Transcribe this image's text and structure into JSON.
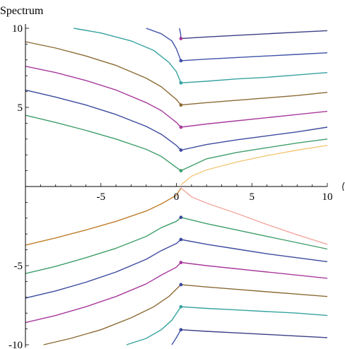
{
  "chart_data": {
    "type": "line",
    "title": "",
    "ylabel": "Spectrum",
    "xlabel": "",
    "xlim": [
      -10,
      10
    ],
    "ylim": [
      -10,
      10
    ],
    "x_ticks": [
      {
        "value": -5,
        "label": "-5"
      },
      {
        "value": 0,
        "label": "0"
      },
      {
        "value": 5,
        "label": "5"
      },
      {
        "value": 10,
        "label": "10"
      }
    ],
    "y_ticks": [
      {
        "value": 10,
        "label": "10"
      },
      {
        "value": 5,
        "label": "5"
      },
      {
        "value": -5,
        "label": "-5"
      },
      {
        "value": -10,
        "label": "-10"
      }
    ],
    "grid": false,
    "series": [
      {
        "color": "#f4c87a",
        "points": [
          [
            0.3,
            0.1
          ],
          [
            1,
            0.65
          ],
          [
            2,
            1.05
          ],
          [
            4,
            1.55
          ],
          [
            6,
            1.95
          ],
          [
            8,
            2.3
          ],
          [
            10,
            2.6
          ]
        ]
      },
      {
        "color": "#f4a8a0",
        "points": [
          [
            0.3,
            -0.1
          ],
          [
            1,
            -0.65
          ],
          [
            2,
            -1.05
          ],
          [
            4,
            -1.7
          ],
          [
            6,
            -2.4
          ],
          [
            8,
            -3.05
          ],
          [
            10,
            -3.65
          ]
        ]
      },
      {
        "color": "#c07e2a",
        "points": [
          [
            -10,
            -3.7
          ],
          [
            -8,
            -3.25
          ],
          [
            -6,
            -2.75
          ],
          [
            -4,
            -2.2
          ],
          [
            -2,
            -1.55
          ],
          [
            -1,
            -1.1
          ],
          [
            0,
            -0.55
          ],
          [
            0.3,
            -0.1
          ]
        ]
      },
      {
        "color": "#3f9e6a",
        "points": [
          [
            -10,
            4.5
          ],
          [
            -8,
            4.05
          ],
          [
            -6,
            3.55
          ],
          [
            -4,
            3.0
          ],
          [
            -2,
            2.35
          ],
          [
            -1,
            1.9
          ],
          [
            0,
            1.2
          ],
          [
            0.3,
            1.0
          ]
        ]
      },
      {
        "color": "#3f9e6a",
        "points": [
          [
            0.3,
            1.0
          ],
          [
            2,
            1.75
          ],
          [
            4,
            2.15
          ],
          [
            6,
            2.45
          ],
          [
            8,
            2.75
          ],
          [
            10,
            3.0
          ]
        ]
      },
      {
        "color": "#3c4a9e",
        "points": [
          [
            -10,
            6.1
          ],
          [
            -8,
            5.65
          ],
          [
            -6,
            5.15
          ],
          [
            -4,
            4.55
          ],
          [
            -2,
            3.8
          ],
          [
            -1,
            3.3
          ],
          [
            0,
            2.6
          ],
          [
            0.3,
            2.3
          ]
        ]
      },
      {
        "color": "#3c4a9e",
        "points": [
          [
            0.3,
            2.3
          ],
          [
            2,
            2.65
          ],
          [
            4,
            2.95
          ],
          [
            6,
            3.2
          ],
          [
            8,
            3.45
          ],
          [
            10,
            3.75
          ]
        ]
      },
      {
        "color": "#a83a9c",
        "points": [
          [
            -10,
            7.6
          ],
          [
            -8,
            7.2
          ],
          [
            -6,
            6.7
          ],
          [
            -4,
            6.1
          ],
          [
            -2,
            5.3
          ],
          [
            -1,
            4.8
          ],
          [
            0,
            4.05
          ],
          [
            0.3,
            3.75
          ]
        ]
      },
      {
        "color": "#a83a9c",
        "points": [
          [
            0.3,
            3.75
          ],
          [
            2,
            3.95
          ],
          [
            4,
            4.15
          ],
          [
            6,
            4.35
          ],
          [
            8,
            4.55
          ],
          [
            10,
            4.75
          ]
        ]
      },
      {
        "color": "#8b6a34",
        "points": [
          [
            -10,
            9.15
          ],
          [
            -8,
            8.75
          ],
          [
            -6,
            8.25
          ],
          [
            -4,
            7.65
          ],
          [
            -2,
            6.85
          ],
          [
            -1,
            6.3
          ],
          [
            0,
            5.5
          ],
          [
            0.3,
            5.15
          ]
        ]
      },
      {
        "color": "#8b6a34",
        "points": [
          [
            0.3,
            5.15
          ],
          [
            2,
            5.3
          ],
          [
            4,
            5.45
          ],
          [
            6,
            5.6
          ],
          [
            8,
            5.75
          ],
          [
            10,
            5.95
          ]
        ]
      },
      {
        "color": "#36a3a0",
        "points": [
          [
            -6.8,
            10
          ],
          [
            -5,
            9.7
          ],
          [
            -3,
            9.2
          ],
          [
            -1.5,
            8.6
          ],
          [
            -0.5,
            7.85
          ],
          [
            0,
            7.25
          ],
          [
            0.3,
            6.55
          ]
        ]
      },
      {
        "color": "#36a3a0",
        "points": [
          [
            0.3,
            6.55
          ],
          [
            2,
            6.65
          ],
          [
            4,
            6.8
          ],
          [
            6,
            6.9
          ],
          [
            8,
            7.05
          ],
          [
            10,
            7.2
          ]
        ]
      },
      {
        "color": "#3f52a8",
        "points": [
          [
            -2,
            10
          ],
          [
            -1,
            9.65
          ],
          [
            -0.3,
            9.2
          ],
          [
            0,
            8.7
          ],
          [
            0.3,
            7.95
          ]
        ]
      },
      {
        "color": "#3f52a8",
        "points": [
          [
            0.3,
            7.95
          ],
          [
            2,
            8.05
          ],
          [
            4,
            8.15
          ],
          [
            6,
            8.25
          ],
          [
            8,
            8.35
          ],
          [
            10,
            8.45
          ]
        ]
      },
      {
        "color": "#3f52a8",
        "points": [
          [
            0.2,
            10
          ],
          [
            0.28,
            9.65
          ],
          [
            0.3,
            9.35
          ]
        ]
      },
      {
        "color": "#3c3f86",
        "points": [
          [
            0.3,
            9.35
          ],
          [
            2,
            9.45
          ],
          [
            4,
            9.55
          ],
          [
            6,
            9.65
          ],
          [
            8,
            9.75
          ],
          [
            10,
            9.85
          ]
        ]
      },
      {
        "color": "#3f9e6a",
        "points": [
          [
            -10,
            -5.5
          ],
          [
            -8,
            -5.05
          ],
          [
            -6,
            -4.5
          ],
          [
            -4,
            -3.9
          ],
          [
            -2,
            -3.15
          ],
          [
            -1,
            -2.6
          ],
          [
            0,
            -2.2
          ],
          [
            0.3,
            -1.95
          ]
        ]
      },
      {
        "color": "#3f9e6a",
        "points": [
          [
            0.3,
            -1.95
          ],
          [
            2,
            -2.35
          ],
          [
            4,
            -2.75
          ],
          [
            6,
            -3.15
          ],
          [
            8,
            -3.55
          ],
          [
            10,
            -3.95
          ]
        ]
      },
      {
        "color": "#3c4a9e",
        "points": [
          [
            -10,
            -7.05
          ],
          [
            -8,
            -6.6
          ],
          [
            -6,
            -6.05
          ],
          [
            -4,
            -5.4
          ],
          [
            -2,
            -4.6
          ],
          [
            -1,
            -4.05
          ],
          [
            0,
            -3.6
          ],
          [
            0.3,
            -3.35
          ]
        ]
      },
      {
        "color": "#3c4a9e",
        "points": [
          [
            0.3,
            -3.35
          ],
          [
            2,
            -3.65
          ],
          [
            4,
            -3.95
          ],
          [
            6,
            -4.25
          ],
          [
            8,
            -4.5
          ],
          [
            10,
            -4.75
          ]
        ]
      },
      {
        "color": "#a83a9c",
        "points": [
          [
            -10,
            -8.6
          ],
          [
            -8,
            -8.15
          ],
          [
            -6,
            -7.6
          ],
          [
            -4,
            -6.95
          ],
          [
            -2,
            -6.15
          ],
          [
            -1,
            -5.6
          ],
          [
            0,
            -5.1
          ],
          [
            0.3,
            -4.8
          ]
        ]
      },
      {
        "color": "#a83a9c",
        "points": [
          [
            0.3,
            -4.8
          ],
          [
            2,
            -5.0
          ],
          [
            4,
            -5.2
          ],
          [
            6,
            -5.4
          ],
          [
            8,
            -5.6
          ],
          [
            10,
            -5.8
          ]
        ]
      },
      {
        "color": "#8b6a34",
        "points": [
          [
            -8.8,
            -10
          ],
          [
            -7,
            -9.6
          ],
          [
            -5,
            -9.05
          ],
          [
            -3,
            -8.3
          ],
          [
            -1.5,
            -7.6
          ],
          [
            -0.5,
            -6.95
          ],
          [
            0.3,
            -6.2
          ]
        ]
      },
      {
        "color": "#8b6a34",
        "points": [
          [
            0.3,
            -6.2
          ],
          [
            2,
            -6.35
          ],
          [
            4,
            -6.5
          ],
          [
            6,
            -6.65
          ],
          [
            8,
            -6.8
          ],
          [
            10,
            -6.95
          ]
        ]
      },
      {
        "color": "#36a3a0",
        "points": [
          [
            -3.3,
            -10
          ],
          [
            -2,
            -9.6
          ],
          [
            -1,
            -9.05
          ],
          [
            -0.3,
            -8.45
          ],
          [
            0.3,
            -7.6
          ]
        ]
      },
      {
        "color": "#36a3a0",
        "points": [
          [
            0.3,
            -7.6
          ],
          [
            2,
            -7.7
          ],
          [
            4,
            -7.8
          ],
          [
            6,
            -7.9
          ],
          [
            8,
            -8.0
          ],
          [
            10,
            -8.15
          ]
        ]
      },
      {
        "color": "#3f52a8",
        "points": [
          [
            -0.3,
            -10
          ],
          [
            0,
            -9.55
          ],
          [
            0.3,
            -9.05
          ]
        ]
      },
      {
        "color": "#3c3f86",
        "points": [
          [
            0.3,
            -9.05
          ],
          [
            2,
            -9.15
          ],
          [
            4,
            -9.25
          ],
          [
            6,
            -9.35
          ],
          [
            8,
            -9.45
          ],
          [
            10,
            -9.55
          ]
        ]
      }
    ],
    "markers": [
      {
        "color": "#3f9e6a",
        "x": 0.3,
        "y": 1.0
      },
      {
        "color": "#3c4a9e",
        "x": 0.3,
        "y": 2.3
      },
      {
        "color": "#a83a9c",
        "x": 0.3,
        "y": 3.75
      },
      {
        "color": "#8b6a34",
        "x": 0.3,
        "y": 5.15
      },
      {
        "color": "#36a3a0",
        "x": 0.3,
        "y": 6.55
      },
      {
        "color": "#3f52a8",
        "x": 0.3,
        "y": 7.95
      },
      {
        "color": "#a83a9c",
        "x": 0.3,
        "y": 9.35
      },
      {
        "color": "#3c4a9e",
        "x": 0.3,
        "y": -1.95
      },
      {
        "color": "#3c4a9e",
        "x": 0.3,
        "y": -3.35
      },
      {
        "color": "#a83a9c",
        "x": 0.3,
        "y": -4.8
      },
      {
        "color": "#3c4a9e",
        "x": 0.3,
        "y": -6.2
      },
      {
        "color": "#36a3a0",
        "x": 0.3,
        "y": -7.6
      },
      {
        "color": "#3c4a9e",
        "x": 0.3,
        "y": -9.05
      }
    ]
  }
}
